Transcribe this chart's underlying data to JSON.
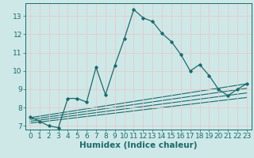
{
  "background_color": "#cee8e8",
  "grid_color": "#e8c8c8",
  "line_color": "#1a6b6b",
  "xlabel": "Humidex (Indice chaleur)",
  "xlim": [
    -0.5,
    23.5
  ],
  "ylim": [
    6.8,
    13.7
  ],
  "xticks": [
    0,
    1,
    2,
    3,
    4,
    5,
    6,
    7,
    8,
    9,
    10,
    11,
    12,
    13,
    14,
    15,
    16,
    17,
    18,
    19,
    20,
    21,
    22,
    23
  ],
  "yticks": [
    7,
    8,
    9,
    10,
    11,
    12,
    13
  ],
  "main_x": [
    0,
    1,
    2,
    3,
    4,
    5,
    6,
    7,
    8,
    9,
    10,
    11,
    12,
    13,
    14,
    15,
    16,
    17,
    18,
    19,
    20,
    21,
    22,
    23
  ],
  "main_y": [
    7.5,
    7.25,
    7.0,
    6.9,
    8.5,
    8.5,
    8.3,
    10.2,
    8.7,
    10.3,
    11.75,
    13.35,
    12.9,
    12.7,
    12.05,
    11.6,
    10.9,
    10.0,
    10.35,
    9.75,
    9.0,
    8.65,
    9.0,
    9.3
  ],
  "line1_x": [
    0,
    23
  ],
  "line1_y": [
    7.45,
    9.3
  ],
  "line2_x": [
    0,
    23
  ],
  "line2_y": [
    7.35,
    9.05
  ],
  "line3_x": [
    0,
    23
  ],
  "line3_y": [
    7.25,
    8.8
  ],
  "line4_x": [
    0,
    23
  ],
  "line4_y": [
    7.15,
    8.55
  ],
  "font_size_xlabel": 7.5,
  "tick_fontsize": 6.5
}
